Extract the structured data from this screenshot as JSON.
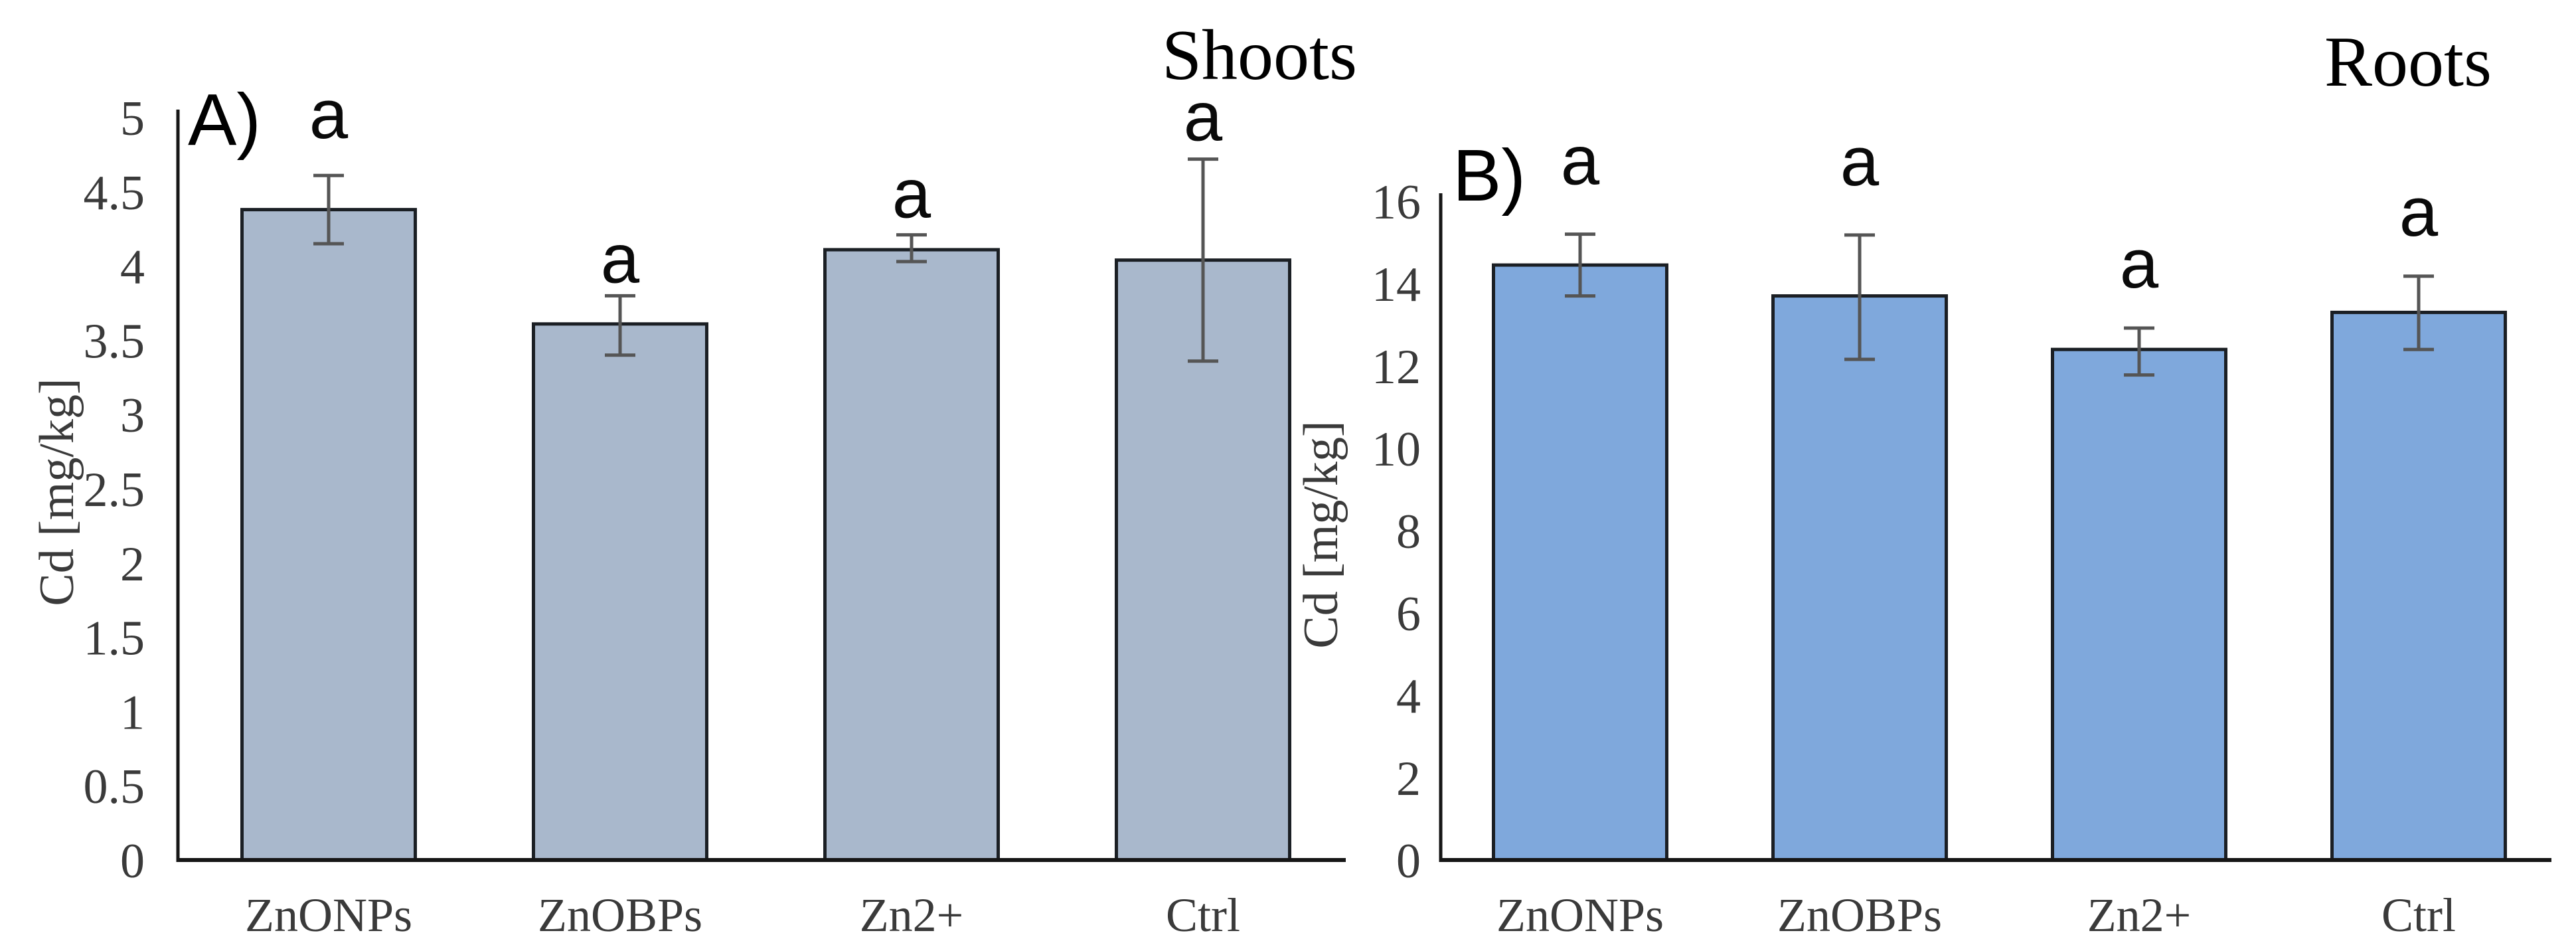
{
  "colors": {
    "background": "#ffffff",
    "bar_fill_shoots": "#a9b8cc",
    "bar_fill_roots": "#7fa8dc",
    "bar_border": "#1b1f24",
    "error_bar": "#555555",
    "axis_line": "#161616",
    "tick_text": "#3a3a3a",
    "title_text": "#000000"
  },
  "chart_data": [
    {
      "id": "A",
      "type": "bar",
      "panel_label": "A)",
      "title": "Shoots",
      "ylabel": "Cd [mg/kg]",
      "xlabel": "",
      "ylim": [
        0,
        5
      ],
      "ytick_step": 0.5,
      "grid": false,
      "legend": "none",
      "categories": [
        "ZnONPs",
        "ZnOBPs",
        "Zn2+",
        "Ctrl"
      ],
      "values": [
        4.38,
        3.61,
        4.11,
        4.04
      ],
      "errors_up": [
        0.23,
        0.19,
        0.1,
        0.68
      ],
      "errors_down": [
        0.23,
        0.21,
        0.08,
        0.68
      ],
      "sig_letters": [
        "a",
        "a",
        "a",
        "a"
      ],
      "bar_color": "#a9b8cc"
    },
    {
      "id": "B",
      "type": "bar",
      "panel_label": "B)",
      "title": "Roots",
      "ylabel": "Cd [mg/kg]",
      "xlabel": "",
      "ylim": [
        0,
        16
      ],
      "ytick_step": 2,
      "grid": false,
      "legend": "none",
      "categories": [
        "ZnONPs",
        "ZnOBPs",
        "Zn2+",
        "Ctrl"
      ],
      "values": [
        14.45,
        13.7,
        12.4,
        13.3
      ],
      "errors_up": [
        0.75,
        1.48,
        0.52,
        0.88
      ],
      "errors_down": [
        0.75,
        1.54,
        0.62,
        0.9
      ],
      "sig_letters": [
        "a",
        "a",
        "a",
        "a"
      ],
      "bar_color": "#7fa8dc"
    }
  ]
}
